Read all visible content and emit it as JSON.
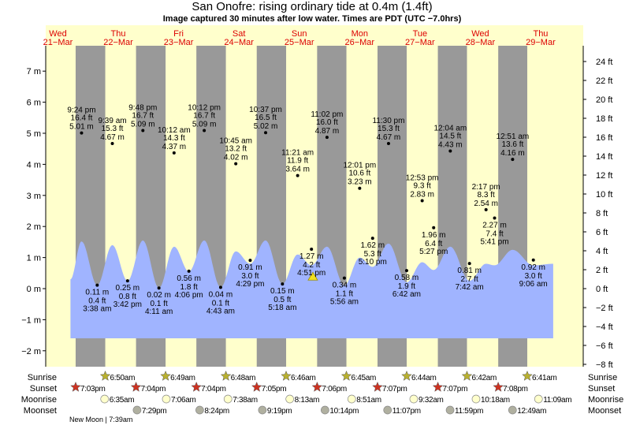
{
  "chart_data": {
    "type": "area",
    "title": "San Onofre: rising  ordinary tide at 0.4m (1.4ft)",
    "subtitle": "Image captured 30 minutes after low water. Times are PDT (UTC −7.0hrs)",
    "time_unit": "hours since 21-Mar 00:00",
    "xlim": [
      0,
      216
    ],
    "ylim_m": [
      -2.3,
      7.8
    ],
    "y_ticks_m": [
      7,
      6,
      5,
      4,
      3,
      2,
      1,
      0,
      -1,
      -2
    ],
    "y_ticks_ft": [
      24,
      22,
      20,
      18,
      16,
      14,
      12,
      10,
      8,
      6,
      4,
      2,
      0,
      -2,
      -4,
      -6,
      -8
    ],
    "y_tick_m_labels": [
      "7 m",
      "6 m",
      "5 m",
      "4 m",
      "3 m",
      "2 m",
      "1 m",
      "0 m",
      "−1 m",
      "−2 m"
    ],
    "y_tick_ft_labels": [
      "24 ft",
      "22 ft",
      "20 ft",
      "18 ft",
      "16 ft",
      "14 ft",
      "12 ft",
      "10 ft",
      "8 ft",
      "6 ft",
      "4 ft",
      "2 ft",
      "0 ft",
      "−2 ft",
      "−4 ft",
      "−6 ft",
      "−8 ft"
    ],
    "days": [
      {
        "weekday": "Wed",
        "date": "21−Mar"
      },
      {
        "weekday": "Thu",
        "date": "22−Mar"
      },
      {
        "weekday": "Fri",
        "date": "23−Mar"
      },
      {
        "weekday": "Sat",
        "date": "24−Mar"
      },
      {
        "weekday": "Sun",
        "date": "25−Mar"
      },
      {
        "weekday": "Mon",
        "date": "26−Mar"
      },
      {
        "weekday": "Tue",
        "date": "27−Mar"
      },
      {
        "weekday": "Wed",
        "date": "28−Mar"
      },
      {
        "weekday": "Thu",
        "date": "29−Mar"
      }
    ],
    "night_bands": [
      [
        19.05,
        30.83
      ],
      [
        43.07,
        54.82
      ],
      [
        67.07,
        78.8
      ],
      [
        91.08,
        102.77
      ],
      [
        115.1,
        126.75
      ],
      [
        139.12,
        150.73
      ],
      [
        163.12,
        174.7
      ],
      [
        187.13,
        198.68
      ]
    ],
    "water_curve": [
      [
        17,
        0.3
      ],
      [
        21.4,
        1.52
      ],
      [
        27.63,
        0.11
      ],
      [
        33.65,
        1.4
      ],
      [
        39.7,
        0.25
      ],
      [
        45.8,
        1.55
      ],
      [
        52.18,
        0.02
      ],
      [
        58.2,
        1.35
      ],
      [
        64.1,
        0.55
      ],
      [
        70.2,
        1.55
      ],
      [
        76.72,
        0.04
      ],
      [
        82.75,
        1.2
      ],
      [
        88.48,
        0.8
      ],
      [
        94.62,
        1.55
      ],
      [
        101.3,
        0.15
      ],
      [
        107.35,
        1.1
      ],
      [
        112.85,
        0.75
      ],
      [
        119.03,
        1.35
      ],
      [
        125.93,
        0.1
      ],
      [
        132.02,
        1.0
      ],
      [
        137.17,
        0.7
      ],
      [
        143.5,
        1.45
      ],
      [
        150.7,
        0.2
      ],
      [
        156.88,
        0.85
      ],
      [
        161.45,
        0.6
      ],
      [
        168.07,
        1.35
      ],
      [
        175.7,
        0.25
      ],
      [
        182.28,
        0.8
      ],
      [
        185.68,
        0.75
      ],
      [
        192.85,
        1.25
      ],
      [
        201.1,
        0.75
      ],
      [
        209,
        0.8
      ]
    ],
    "current": {
      "t": 113.4,
      "m": 0.4
    },
    "highs": [
      {
        "t": 21.4,
        "time": "9:24 pm",
        "ft": "16.4 ft",
        "m": 5.01,
        "m_label": "5.01 m"
      },
      {
        "t": 33.65,
        "time": "9:39 am",
        "ft": "15.3 ft",
        "m": 4.67,
        "m_label": "4.67 m"
      },
      {
        "t": 45.8,
        "time": "9:48 pm",
        "ft": "16.7 ft",
        "m": 5.09,
        "m_label": "5.09 m"
      },
      {
        "t": 58.2,
        "time": "10:12 am",
        "ft": "14.3 ft",
        "m": 4.37,
        "m_label": "4.37 m"
      },
      {
        "t": 70.2,
        "time": "10:12 pm",
        "ft": "16.7 ft",
        "m": 5.09,
        "m_label": "5.09 m"
      },
      {
        "t": 82.75,
        "time": "10:45 am",
        "ft": "13.2 ft",
        "m": 4.02,
        "m_label": "4.02 m"
      },
      {
        "t": 94.62,
        "time": "10:37 pm",
        "ft": "16.5 ft",
        "m": 5.02,
        "m_label": "5.02 m"
      },
      {
        "t": 107.35,
        "time": "11:21 am",
        "ft": "11.9 ft",
        "m": 3.64,
        "m_label": "3.64 m"
      },
      {
        "t": 119.03,
        "time": "11:02 pm",
        "ft": "16.0 ft",
        "m": 4.87,
        "m_label": "4.87 m"
      },
      {
        "t": 132.02,
        "time": "12:01 pm",
        "ft": "10.6 ft",
        "m": 3.23,
        "m_label": "3.23 m"
      },
      {
        "t": 143.5,
        "time": "11:30 pm",
        "ft": "15.3 ft",
        "m": 4.67,
        "m_label": "4.67 m"
      },
      {
        "t": 156.88,
        "time": "12:53 pm",
        "ft": "9.3 ft",
        "m": 2.83,
        "m_label": "2.83 m"
      },
      {
        "t": 168.07,
        "time": "12:04 am",
        "ft": "14.5 ft",
        "m": 4.43,
        "m_label": "4.43 m"
      },
      {
        "t": 182.28,
        "time": "2:17 pm",
        "ft": "8.3 ft",
        "m": 2.54,
        "m_label": "2.54 m"
      },
      {
        "t": 192.85,
        "time": "12:51 am",
        "ft": "13.6 ft",
        "m": 4.16,
        "m_label": "4.16 m"
      }
    ],
    "lows": [
      {
        "t": 27.63,
        "time": "3:38 am",
        "ft": "0.4 ft",
        "m": 0.11,
        "m_label": "0.11 m"
      },
      {
        "t": 39.7,
        "time": "3:42 pm",
        "ft": "0.8 ft",
        "m": 0.25,
        "m_label": "0.25 m"
      },
      {
        "t": 52.18,
        "time": "4:11 am",
        "ft": "0.1 ft",
        "m": 0.02,
        "m_label": "0.02 m"
      },
      {
        "t": 64.1,
        "time": "4:06 pm",
        "ft": "1.8 ft",
        "m": 0.56,
        "m_label": "0.56 m"
      },
      {
        "t": 76.72,
        "time": "4:43 am",
        "ft": "0.1 ft",
        "m": 0.04,
        "m_label": "0.04 m"
      },
      {
        "t": 88.48,
        "time": "4:29 pm",
        "ft": "3.0 ft",
        "m": 0.91,
        "m_label": "0.91 m"
      },
      {
        "t": 101.3,
        "time": "5:18 am",
        "ft": "0.5 ft",
        "m": 0.15,
        "m_label": "0.15 m"
      },
      {
        "t": 112.85,
        "time": "4:51 pm",
        "ft": "4.2 ft",
        "m": 1.27,
        "m_label": "1.27 m"
      },
      {
        "t": 125.93,
        "time": "5:56 am",
        "ft": "1.1 ft",
        "m": 0.34,
        "m_label": "0.34 m"
      },
      {
        "t": 137.17,
        "time": "5:10 pm",
        "ft": "5.3 ft",
        "m": 1.62,
        "m_label": "1.62 m"
      },
      {
        "t": 150.7,
        "time": "6:42 am",
        "ft": "1.9 ft",
        "m": 0.58,
        "m_label": "0.58 m"
      },
      {
        "t": 161.45,
        "time": "5:27 pm",
        "ft": "6.4 ft",
        "m": 1.96,
        "m_label": "1.96 m"
      },
      {
        "t": 175.7,
        "time": "7:42 am",
        "ft": "2.7 ft",
        "m": 0.81,
        "m_label": "0.81 m"
      },
      {
        "t": 185.68,
        "time": "5:41 pm",
        "ft": "7.4 ft",
        "m": 2.27,
        "m_label": "2.27 m"
      },
      {
        "t": 201.1,
        "time": "9:06 am",
        "ft": "3.0 ft",
        "m": 0.92,
        "m_label": "0.92 m"
      }
    ],
    "colors": {
      "day": "#ffffcc",
      "night": "#999999",
      "water": "#a0b4ff",
      "day_label": "#dd0000",
      "sunrise": "#b8b030",
      "sunset": "#cc3322",
      "moonrise": "#ffffcc",
      "moonset": "#b0b0a0"
    }
  },
  "astro": {
    "row_labels": {
      "sunrise": "Sunrise",
      "sunset": "Sunset",
      "moonrise": "Moonrise",
      "moonset": "Moonset"
    },
    "sunrise": [
      {
        "t": 30.83,
        "label": "6:50am"
      },
      {
        "t": 54.82,
        "label": "6:49am"
      },
      {
        "t": 78.8,
        "label": "6:48am"
      },
      {
        "t": 102.77,
        "label": "6:46am"
      },
      {
        "t": 126.75,
        "label": "6:45am"
      },
      {
        "t": 150.73,
        "label": "6:44am"
      },
      {
        "t": 174.7,
        "label": "6:42am"
      },
      {
        "t": 198.68,
        "label": "6:41am"
      }
    ],
    "sunset": [
      {
        "t": 19.05,
        "label": "7:03pm"
      },
      {
        "t": 43.07,
        "label": "7:04pm"
      },
      {
        "t": 67.07,
        "label": "7:04pm"
      },
      {
        "t": 91.08,
        "label": "7:05pm"
      },
      {
        "t": 115.1,
        "label": "7:06pm"
      },
      {
        "t": 139.12,
        "label": "7:07pm"
      },
      {
        "t": 163.12,
        "label": "7:07pm"
      },
      {
        "t": 187.13,
        "label": "7:08pm"
      }
    ],
    "moonrise": [
      {
        "t": 30.58,
        "label": "6:35am"
      },
      {
        "t": 55.1,
        "label": "7:06am"
      },
      {
        "t": 79.63,
        "label": "7:38am"
      },
      {
        "t": 104.22,
        "label": "8:13am"
      },
      {
        "t": 128.85,
        "label": "8:51am"
      },
      {
        "t": 153.53,
        "label": "9:32am"
      },
      {
        "t": 178.3,
        "label": "10:18am"
      },
      {
        "t": 203.15,
        "label": "11:09am"
      }
    ],
    "moonset": [
      {
        "t": 43.48,
        "label": "7:29pm"
      },
      {
        "t": 68.4,
        "label": "8:24pm"
      },
      {
        "t": 93.32,
        "label": "9:19pm"
      },
      {
        "t": 118.23,
        "label": "10:14pm"
      },
      {
        "t": 143.12,
        "label": "11:07pm"
      },
      {
        "t": 167.98,
        "label": "11:59pm"
      },
      {
        "t": 192.82,
        "label": "12:49am"
      }
    ],
    "moon_phase": "New Moon | 7:39am"
  }
}
